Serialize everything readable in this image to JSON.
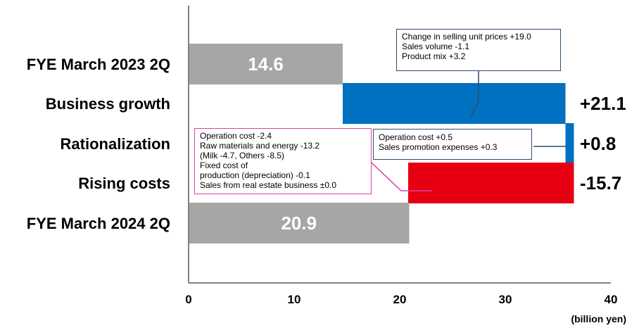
{
  "chart_data": {
    "type": "waterfall",
    "unit": "(billion yen)",
    "xlim": [
      0,
      40
    ],
    "xticks": [
      0,
      10,
      20,
      30,
      40
    ],
    "bars": [
      {
        "label": "FYE March 2023 2Q",
        "kind": "total",
        "start": 0,
        "end": 14.6,
        "value_label": "14.6",
        "color": "#a6a6a6"
      },
      {
        "label": "Business growth",
        "kind": "delta",
        "start": 14.6,
        "end": 35.7,
        "value_label": "+21.1",
        "color": "#0070c0"
      },
      {
        "label": "Rationalization",
        "kind": "delta",
        "start": 35.7,
        "end": 36.5,
        "value_label": "+0.8",
        "color": "#0070c0"
      },
      {
        "label": "Rising costs",
        "kind": "delta",
        "start": 36.5,
        "end": 20.8,
        "value_label": "-15.7",
        "color": "#e60012"
      },
      {
        "label": "FYE March 2024 2Q",
        "kind": "total",
        "start": 0,
        "end": 20.9,
        "value_label": "20.9",
        "color": "#a6a6a6"
      }
    ]
  },
  "notes": {
    "growth": [
      "Change in selling unit prices  +19.0",
      "Sales volume  -1.1",
      "Product mix   +3.2"
    ],
    "rational": [
      "Operation cost  +0.5",
      "Sales promotion expenses +0.3"
    ],
    "costs": [
      "Operation cost  -2.4",
      "Raw materials and energy   -13.2",
      "(Milk -4.7, Others -8.5)",
      "Fixed cost of",
      "production (depreciation)  -0.1",
      "Sales from real estate business  ±0.0"
    ]
  },
  "colors": {
    "grey": "#a6a6a6",
    "blue": "#0070c0",
    "red": "#e60012",
    "blue_border": "#2f4b6e",
    "pink_border": "#e040a0"
  }
}
